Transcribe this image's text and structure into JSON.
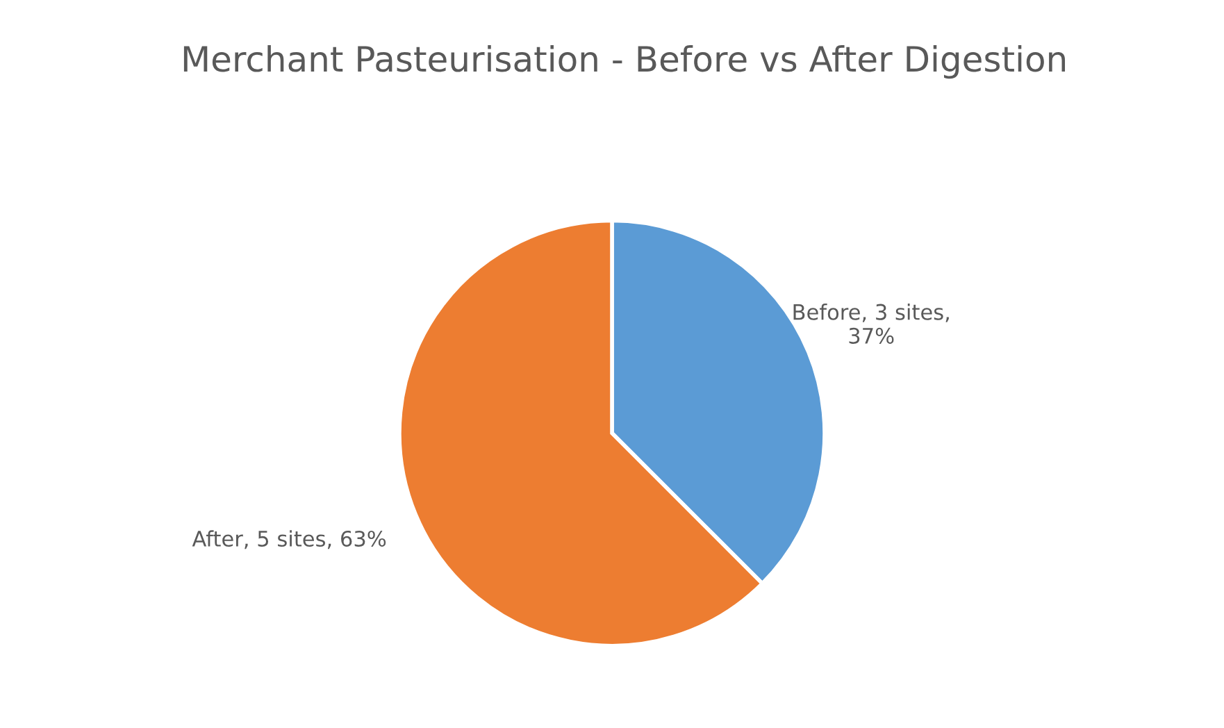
{
  "chart_data": {
    "type": "pie",
    "title": "Merchant Pasteurisation - Before vs After Digestion",
    "categories": [
      "Before",
      "After"
    ],
    "values": [
      3,
      5
    ],
    "colors": [
      "#5b9bd5",
      "#ed7d31"
    ],
    "value_labels": [
      "3 sites, 37%",
      "5 sites, 63%"
    ],
    "legend": false
  }
}
